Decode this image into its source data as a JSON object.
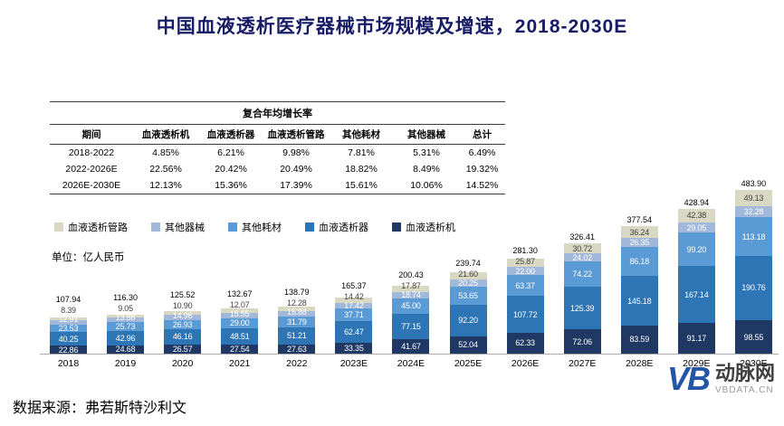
{
  "title": "中国血液透析医疗器械市场规模及增速，2018-2030E",
  "cagr_table": {
    "header": "复合年均增长率",
    "columns": [
      "期间",
      "血液透析机",
      "血液透析器",
      "血液透析管路",
      "其他耗材",
      "其他器械",
      "总计"
    ],
    "rows": [
      [
        "2018-2022",
        "4.85%",
        "6.21%",
        "9.98%",
        "7.81%",
        "5.31%",
        "6.49%"
      ],
      [
        "2022-2026E",
        "22.56%",
        "20.42%",
        "20.49%",
        "18.82%",
        "8.49%",
        "19.32%"
      ],
      [
        "2026E-2030E",
        "12.13%",
        "15.36%",
        "17.39%",
        "15.61%",
        "10.06%",
        "14.52%"
      ]
    ]
  },
  "unit_label": "单位：亿人民币",
  "source": "数据来源：弗若斯特沙利文",
  "watermark": {
    "logo": "VB",
    "name": "动脉网",
    "site": "VBDATA.CN"
  },
  "chart_data": {
    "type": "bar",
    "stacked": true,
    "title": "中国血液透析医疗器械市场规模及增速，2018-2030E",
    "unit": "亿人民币",
    "categories": [
      "2018",
      "2019",
      "2020",
      "2021",
      "2022",
      "2023E",
      "2024E",
      "2025E",
      "2026E",
      "2027E",
      "2028E",
      "2029E",
      "2030E"
    ],
    "series": [
      {
        "name": "血液透析机",
        "color": "#1f3864",
        "label_color": "#ffffff",
        "values": [
          22.86,
          24.68,
          26.57,
          27.54,
          27.63,
          33.35,
          41.67,
          52.04,
          62.33,
          72.06,
          83.59,
          91.17,
          98.55
        ]
      },
      {
        "name": "血液透析器",
        "color": "#2e75b6",
        "label_color": "#ffffff",
        "values": [
          40.25,
          42.96,
          46.16,
          48.51,
          51.21,
          62.47,
          77.15,
          92.2,
          107.72,
          125.39,
          145.18,
          167.14,
          190.76
        ]
      },
      {
        "name": "其他耗材",
        "color": "#5b9bd5",
        "label_color": "#ffffff",
        "values": [
          23.53,
          25.73,
          26.93,
          29.0,
          31.79,
          37.71,
          45.0,
          53.65,
          63.37,
          74.22,
          86.18,
          99.2,
          113.18
        ]
      },
      {
        "name": "其他器械",
        "color": "#a2b8da",
        "label_color": "#ffffff",
        "values": [
          12.91,
          13.88,
          14.96,
          15.55,
          15.88,
          17.42,
          18.74,
          20.25,
          22.0,
          24.02,
          26.35,
          29.05,
          32.28
        ]
      },
      {
        "name": "血液透析管路",
        "color": "#d9d9c3",
        "label_color": "#404040",
        "values": [
          8.39,
          9.05,
          10.9,
          12.07,
          12.28,
          14.42,
          17.87,
          21.6,
          25.87,
          30.72,
          36.24,
          42.38,
          49.13
        ]
      }
    ],
    "totals": [
      107.94,
      116.3,
      125.52,
      132.67,
      138.79,
      165.37,
      200.43,
      239.74,
      281.3,
      326.41,
      377.54,
      428.94,
      483.9
    ],
    "legend_order": [
      "血液透析管路",
      "其他器械",
      "其他耗材",
      "血液透析器",
      "血液透析机"
    ],
    "stack_order_bottom_to_top": [
      "血液透析机",
      "血液透析器",
      "其他耗材",
      "其他器械",
      "血液透析管路"
    ],
    "ylim": [
      0,
      500
    ],
    "grid": false,
    "legend_position": "top-left"
  }
}
